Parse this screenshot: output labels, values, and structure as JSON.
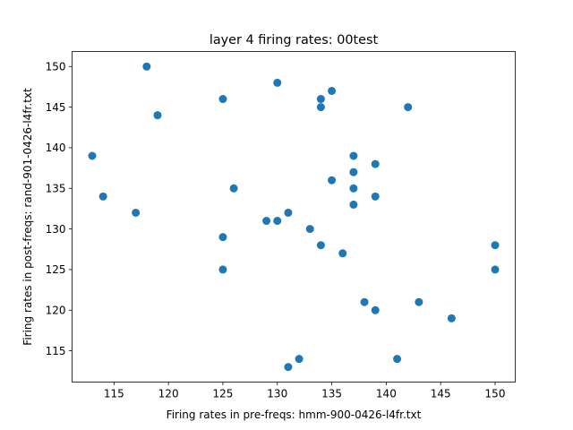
{
  "chart_data": {
    "type": "scatter",
    "title": "layer 4 firing rates: 00test",
    "xlabel": "Firing rates in pre-freqs: hmm-900-0426-l4fr.txt",
    "ylabel": "Firing rates in post-freqs: rand-901-0426-l4fr.txt",
    "xlim": [
      111.15,
      151.85
    ],
    "ylim": [
      111.15,
      151.85
    ],
    "xticks": [
      115,
      120,
      125,
      130,
      135,
      140,
      145,
      150
    ],
    "yticks": [
      115,
      120,
      125,
      130,
      135,
      140,
      145,
      150
    ],
    "grid": false,
    "marker_color": "#1f77b4",
    "points": [
      {
        "x": 113,
        "y": 139
      },
      {
        "x": 114,
        "y": 134
      },
      {
        "x": 117,
        "y": 132
      },
      {
        "x": 118,
        "y": 150
      },
      {
        "x": 119,
        "y": 144
      },
      {
        "x": 125,
        "y": 146
      },
      {
        "x": 125,
        "y": 129
      },
      {
        "x": 125,
        "y": 125
      },
      {
        "x": 126,
        "y": 135
      },
      {
        "x": 129,
        "y": 131
      },
      {
        "x": 130,
        "y": 148
      },
      {
        "x": 130,
        "y": 131
      },
      {
        "x": 131,
        "y": 132
      },
      {
        "x": 131,
        "y": 113
      },
      {
        "x": 132,
        "y": 114
      },
      {
        "x": 133,
        "y": 130
      },
      {
        "x": 134,
        "y": 146
      },
      {
        "x": 134,
        "y": 145
      },
      {
        "x": 134,
        "y": 128
      },
      {
        "x": 135,
        "y": 147
      },
      {
        "x": 135,
        "y": 136
      },
      {
        "x": 136,
        "y": 127
      },
      {
        "x": 137,
        "y": 139
      },
      {
        "x": 137,
        "y": 137
      },
      {
        "x": 137,
        "y": 135
      },
      {
        "x": 137,
        "y": 133
      },
      {
        "x": 138,
        "y": 121
      },
      {
        "x": 139,
        "y": 138
      },
      {
        "x": 139,
        "y": 134
      },
      {
        "x": 139,
        "y": 120
      },
      {
        "x": 141,
        "y": 114
      },
      {
        "x": 142,
        "y": 145
      },
      {
        "x": 143,
        "y": 121
      },
      {
        "x": 146,
        "y": 119
      },
      {
        "x": 150,
        "y": 128
      },
      {
        "x": 150,
        "y": 125
      }
    ]
  }
}
